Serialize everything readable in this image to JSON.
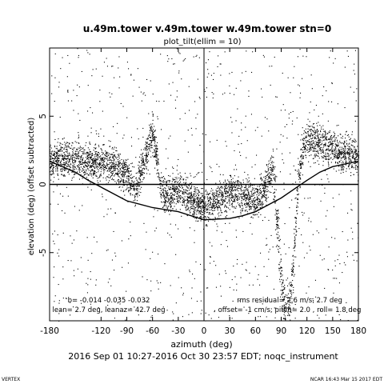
{
  "chart_data": {
    "type": "scatter",
    "title": "u.49m.tower v.49m.tower w.49m.tower stn=0",
    "subtitle": "plot_tilt(ellim = 10)",
    "xlabel": "azimuth (deg)",
    "ylabel": "elevation (deg)  (offset subtracted)",
    "xlim": [
      -180,
      180
    ],
    "ylim": [
      -10,
      10
    ],
    "x_ticks": [
      -180,
      -120,
      -90,
      -60,
      -30,
      0,
      30,
      60,
      90,
      120,
      150,
      180
    ],
    "y_ticks": [
      -5,
      0,
      5
    ],
    "grid": false,
    "reference_lines": {
      "x": 0,
      "y": 0
    },
    "stats_left": [
      "b= -0.014 -0.035 -0.032",
      "lean= 2.7 deg, leanaz= 42.7 deg"
    ],
    "stats_right": [
      "rms residual= 2.6 m/s, 2.7 deg",
      "offset= -1 cm/s; pitch= 2.0 , roll= 1.8 deg"
    ],
    "date_range": "2016 Sep 01 10:27-2016 Oct 30 23:57 EDT; noqc_instrument",
    "series": [
      {
        "type": "scatter",
        "note": "dense point cloud; binned centerline",
        "x": [
          -180,
          -165,
          -150,
          -135,
          -120,
          -105,
          -90,
          -80,
          -70,
          -60,
          -50,
          -40,
          -30,
          -15,
          0,
          15,
          30,
          45,
          60,
          70,
          80,
          85,
          90,
          95,
          100,
          105,
          110,
          115,
          120,
          130,
          140,
          150,
          160,
          170,
          180
        ],
        "y": [
          1.8,
          2.0,
          1.9,
          1.6,
          1.7,
          1.5,
          0.8,
          -0.3,
          1.8,
          3.8,
          -0.5,
          -0.8,
          -0.3,
          -1.2,
          -1.6,
          -1.2,
          -0.5,
          -0.9,
          -1.2,
          -0.2,
          1.2,
          -2.5,
          -7.5,
          -9.6,
          -8.5,
          -4.5,
          0.5,
          2.6,
          3.5,
          3.2,
          3.0,
          2.6,
          2.3,
          2.2,
          2.0
        ]
      },
      {
        "type": "line",
        "note": "fitted tilt sinusoid",
        "x": [
          -180,
          -150,
          -135,
          -120,
          -90,
          -60,
          -30,
          0,
          30,
          45,
          60,
          90,
          120,
          135,
          150,
          180
        ],
        "y": [
          1.7,
          0.9,
          0.3,
          -0.2,
          -1.2,
          -1.7,
          -2.0,
          -2.6,
          -2.5,
          -2.3,
          -2.0,
          -1.0,
          0.3,
          0.9,
          1.3,
          1.7
        ]
      }
    ]
  },
  "footer_left": "VERTEX",
  "footer_right": "NCAR 16:43 Mar 15 2017 EDT"
}
